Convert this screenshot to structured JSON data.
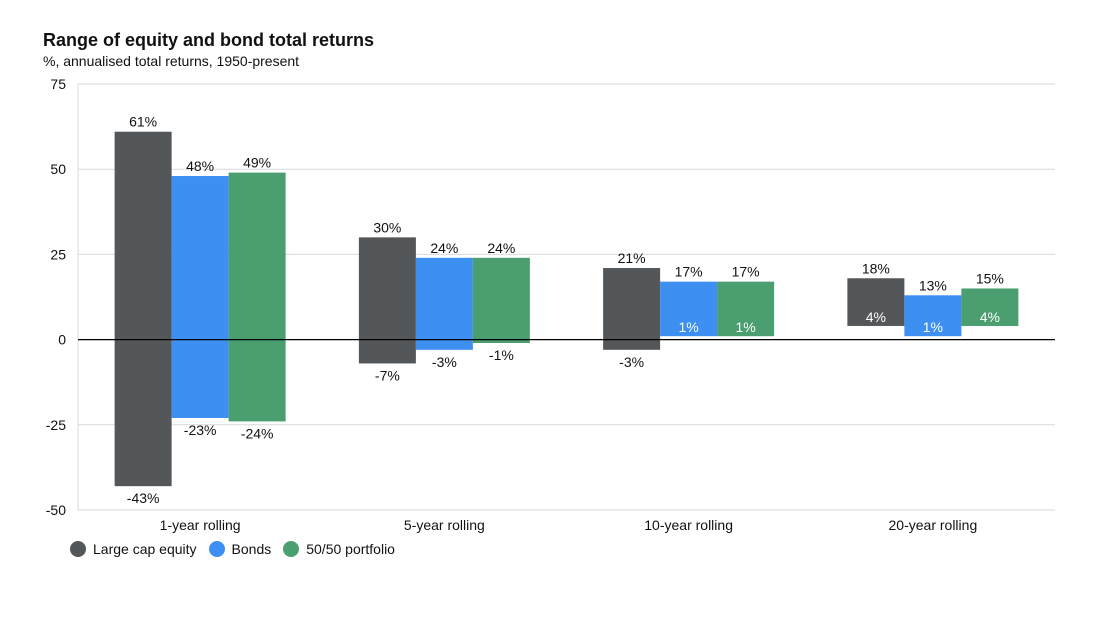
{
  "chart_data": {
    "type": "bar",
    "subtype": "floating-range",
    "title": "Range of equity and bond total returns",
    "subtitle": "%, annualised total returns, 1950-present",
    "xlabel": "",
    "ylabel": "",
    "ylim": [
      -50,
      75
    ],
    "yticks": [
      -50,
      -25,
      0,
      25,
      50,
      75
    ],
    "grid": true,
    "legend_position": "bottom-left",
    "categories": [
      "1-year rolling",
      "5-year rolling",
      "10-year rolling",
      "20-year rolling"
    ],
    "series": [
      {
        "name": "Large cap equity",
        "color": "#545759",
        "max": [
          61,
          30,
          21,
          18
        ],
        "min": [
          -43,
          -7,
          -3,
          4
        ],
        "max_labels": [
          "61%",
          "30%",
          "21%",
          "18%"
        ],
        "min_labels": [
          "-43%",
          "-7%",
          "-3%",
          "4%"
        ]
      },
      {
        "name": "Bonds",
        "color": "#3d8ff2",
        "max": [
          48,
          24,
          17,
          13
        ],
        "min": [
          -23,
          -3,
          1,
          1
        ],
        "max_labels": [
          "48%",
          "24%",
          "17%",
          "13%"
        ],
        "min_labels": [
          "-23%",
          "-3%",
          "1%",
          "1%"
        ]
      },
      {
        "name": "50/50 portfolio",
        "color": "#4a9e6f",
        "max": [
          49,
          24,
          17,
          15
        ],
        "min": [
          -24,
          -1,
          1,
          4
        ],
        "max_labels": [
          "49%",
          "24%",
          "17%",
          "15%"
        ],
        "min_labels": [
          "-24%",
          "-1%",
          "1%",
          "4%"
        ]
      }
    ]
  }
}
